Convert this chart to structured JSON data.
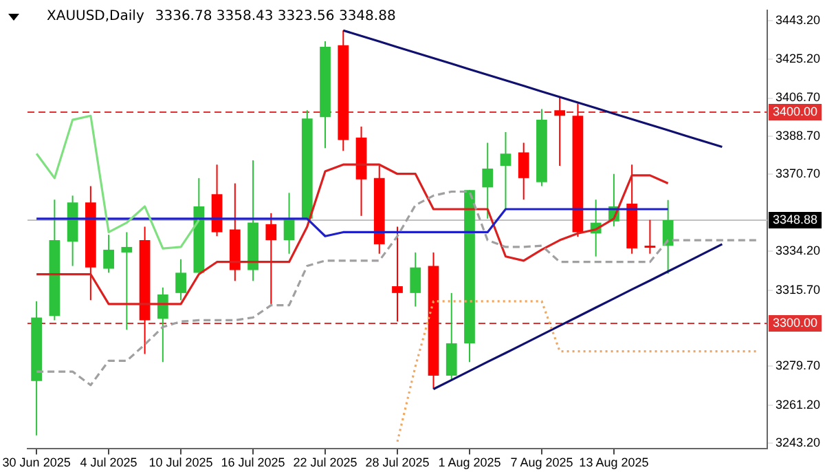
{
  "chart_data": {
    "type": "candlestick",
    "title": "XAUUSD,Daily",
    "subtitle": "3336.78 3358.43 3323.56 3348.88",
    "categories": [
      "30 Jun 2025",
      null,
      null,
      null,
      "4 Jul 2025",
      null,
      null,
      null,
      "10 Jul 2025",
      null,
      null,
      null,
      "16 Jul 2025",
      null,
      null,
      null,
      "22 Jul 2025",
      null,
      null,
      null,
      "28 Jul 2025",
      null,
      null,
      null,
      "1 Aug 2025",
      null,
      null,
      null,
      "7 Aug 2025",
      null,
      null,
      null,
      "13 Aug 2025",
      null,
      null,
      null,
      null,
      null,
      null,
      null,
      null
    ],
    "series": [
      {
        "type": "line",
        "color": "#7fe07f",
        "values": [
          3380.4,
          3368.8,
          3396.4,
          3398.3,
          3343.2,
          3347.7,
          3355.4,
          3335.5,
          3336.2,
          3348.9,
          null,
          null,
          null,
          null,
          null,
          null,
          null,
          null,
          null,
          null,
          null,
          null,
          null,
          null,
          null,
          null,
          null,
          null,
          null,
          null,
          null,
          null,
          null,
          null,
          null,
          null,
          null,
          null,
          null,
          null,
          null
        ]
      },
      {
        "type": "line",
        "color": "#a0a0a0",
        "line_style": "dashed",
        "values": [
          3277.2,
          3277.2,
          3277.2,
          3270.8,
          3282.3,
          3282.3,
          3290,
          3298.3,
          3300.9,
          3301.5,
          3301.5,
          3301.5,
          3302.8,
          3308.6,
          3308.6,
          3327.2,
          3329.7,
          3329.7,
          3329.7,
          3329.7,
          3341.3,
          3356,
          3360.5,
          3362.4,
          3362.4,
          3339.4,
          3336.2,
          3336.2,
          3336.8,
          3329.1,
          3329.1,
          3329.1,
          3329.1,
          3329.1,
          3329.1,
          3339.4,
          3339.4,
          3339.4,
          3339.4,
          3339.4,
          3339.4
        ]
      },
      {
        "type": "line",
        "color": "#f0a860",
        "line_style": "dotted",
        "values": [
          null,
          null,
          null,
          null,
          null,
          null,
          null,
          null,
          null,
          null,
          null,
          null,
          null,
          null,
          null,
          null,
          null,
          null,
          null,
          null,
          3244,
          3279.7,
          3310.5,
          3310.5,
          3310.5,
          3310.5,
          3310.5,
          3310.5,
          3310.5,
          3286.8,
          3286.8,
          3286.8,
          3286.8,
          3286.8,
          3286.8,
          3286.8,
          3286.8,
          3286.8,
          3286.8,
          3286.8,
          3286.8
        ]
      },
      {
        "type": "line",
        "color": "#2020c8",
        "values": [
          3349.6,
          3349.6,
          3349.6,
          3349.6,
          3349.6,
          3349.6,
          3349.6,
          3349.6,
          3349.6,
          3349.6,
          3349.6,
          3349.6,
          3349.6,
          3349.6,
          3349.6,
          3349.6,
          3341.3,
          3343.2,
          3343.2,
          3343.2,
          3343.2,
          3343.2,
          3343.2,
          3343.2,
          3343.2,
          3343.2,
          3354.1,
          3354.1,
          3354.1,
          3354.1,
          3354.1,
          3354.1,
          3354.1,
          3354.1,
          3354.1,
          3354.1,
          null,
          null,
          null,
          null,
          null
        ]
      },
      {
        "type": "line",
        "color": "#dc2020",
        "values": [
          3323.3,
          3323.3,
          3323.3,
          3323.3,
          3309.2,
          3309.2,
          3309.2,
          3309.2,
          3309.2,
          3323.3,
          3329.1,
          3329.1,
          3329.1,
          3329.1,
          3329.1,
          3345.8,
          3372,
          3375.2,
          3375.2,
          3375.2,
          3370.8,
          3370.8,
          3354.1,
          3354.1,
          3354.1,
          3354.1,
          3331.7,
          3329.7,
          3334.9,
          3339.4,
          3342.6,
          3344.5,
          3349.6,
          3370.1,
          3370.1,
          3366.3,
          null,
          null,
          null,
          null,
          null
        ]
      },
      {
        "type": "line",
        "color": "#101070",
        "values": [
          null,
          null,
          null,
          null,
          null,
          null,
          null,
          null,
          null,
          null,
          null,
          null,
          null,
          null,
          null,
          null,
          null,
          3438.7,
          3436.1,
          3433.5,
          3430.8,
          3428.2,
          3425.6,
          3423.0,
          3420.3,
          3417.7,
          3415.1,
          3412.5,
          3409.8,
          3407.2,
          3404.6,
          3402.0,
          3399.3,
          3396.7,
          3394.1,
          3391.5,
          3388.8,
          3386.2,
          3383.6,
          null,
          null
        ]
      },
      {
        "type": "line",
        "color": "#101070",
        "values": [
          null,
          null,
          null,
          null,
          null,
          null,
          null,
          null,
          null,
          null,
          null,
          null,
          null,
          null,
          null,
          null,
          null,
          null,
          null,
          null,
          null,
          null,
          3268.9,
          3273.2,
          3277.5,
          3281.8,
          3286.0,
          3290.3,
          3294.6,
          3298.9,
          3303.2,
          3307.5,
          3311.8,
          3316.1,
          3320.3,
          3324.6,
          3328.9,
          3333.2,
          3337.5,
          null,
          null
        ]
      },
      {
        "colors": [
          "#2dc23c",
          "#2dc23c",
          "#2dc23c",
          "#ff0000",
          "#2dc23c",
          "#2dc23c",
          "#ff0000",
          "#2dc23c",
          "#2dc23c",
          "#2dc23c",
          "#ff0000",
          "#ff0000",
          "#2dc23c",
          "#ff0000",
          "#2dc23c",
          "#2dc23c",
          "#2dc23c",
          "#ff0000",
          "#ff0000",
          "#ff0000",
          "#ff0000",
          "#2dc23c",
          "#ff0000",
          "#2dc23c",
          "#2dc23c",
          "#2dc23c",
          "#2dc23c",
          "#ff0000",
          "#2dc23c",
          "#ff0000",
          "#ff0000",
          "#2dc23c",
          "#2dc23c",
          "#ff0000",
          "#ff0000",
          "#2dc23c",
          null,
          null,
          null,
          null,
          null
        ],
        "ohlc": [
          [
            3272.7,
            3310.5,
            3247,
            3302.8
          ],
          [
            3303.5,
            3358.6,
            3301.5,
            3339.4
          ],
          [
            3338.7,
            3360.5,
            3327.2,
            3357.3
          ],
          [
            3357.3,
            3365,
            3311,
            3326.5
          ],
          [
            3325.9,
            3342,
            3324,
            3334.9
          ],
          [
            3333.6,
            3343.2,
            3297,
            3336.2
          ],
          [
            3339.4,
            3345.8,
            3285.5,
            3301.5
          ],
          [
            3302.2,
            3317,
            3281.7,
            3313.7
          ],
          [
            3314.4,
            3330.4,
            3311,
            3324
          ],
          [
            3324,
            3368.8,
            3324,
            3355.4
          ],
          [
            3361.2,
            3375.2,
            3341.3,
            3343.2
          ],
          [
            3344.5,
            3366.3,
            3320.1,
            3325.3
          ],
          [
            3325.3,
            3377.2,
            3320.1,
            3347.7
          ],
          [
            3347,
            3352.2,
            3309.2,
            3339.4
          ],
          [
            3339.4,
            3361.8,
            3333,
            3349.6
          ],
          [
            3349.6,
            3400.9,
            3349.6,
            3397
          ],
          [
            3397.7,
            3433.6,
            3383,
            3431
          ],
          [
            3431.7,
            3438.7,
            3381.7,
            3386.8
          ],
          [
            3388,
            3393.2,
            3350.9,
            3368.2
          ],
          [
            3368.8,
            3374.6,
            3333,
            3337.5
          ],
          [
            3317.6,
            3345.8,
            3300.9,
            3314.4
          ],
          [
            3314.4,
            3333.6,
            3308,
            3326.5
          ],
          [
            3327.2,
            3333.6,
            3268.9,
            3275.3
          ],
          [
            3275.3,
            3314.4,
            3273.3,
            3290.6
          ],
          [
            3290.6,
            3363.1,
            3281.7,
            3363.1
          ],
          [
            3364.4,
            3385.5,
            3349.6,
            3373.3
          ],
          [
            3374.6,
            3390.6,
            3354.1,
            3380.4
          ],
          [
            3381,
            3385.5,
            3358.6,
            3368.8
          ],
          [
            3366.9,
            3401.5,
            3365,
            3396.4
          ],
          [
            3400.9,
            3407.3,
            3374.6,
            3398.3
          ],
          [
            3398.3,
            3404.1,
            3341,
            3343.2
          ],
          [
            3342.6,
            3358.6,
            3331.7,
            3347.7
          ],
          [
            3348.3,
            3370.8,
            3346,
            3355.4
          ],
          [
            3356.7,
            3375.2,
            3333,
            3335.5
          ],
          [
            3336.8,
            3349,
            3333,
            3336.2
          ],
          [
            3336.78,
            3358.43,
            3323.56,
            3348.88
          ],
          null,
          null,
          null,
          null,
          null
        ]
      }
    ],
    "ylim": [
      3240.6,
      3448.3
    ],
    "yticks": [
      {
        "value": 3443.2,
        "label": "3443.20"
      },
      {
        "value": 3425.2,
        "label": "3425.20"
      },
      {
        "value": 3406.7,
        "label": "3406.70"
      },
      {
        "value": 3388.7,
        "label": "3388.70"
      },
      {
        "value": 3370.7,
        "label": "3370.70"
      },
      {
        "value": 3334.2,
        "label": "3334.20"
      },
      {
        "value": 3315.7,
        "label": "3315.70"
      },
      {
        "value": 3279.7,
        "label": "3279.70"
      },
      {
        "value": 3261.2,
        "label": "3261.20"
      },
      {
        "value": 3243.2,
        "label": "3243.20"
      }
    ],
    "ref_lines": [
      {
        "axis": "y",
        "value": 3400,
        "label": "3400.00",
        "color": "#e03030",
        "line_style": "dashed"
      },
      {
        "axis": "y",
        "value": 3300,
        "label": "3300.00",
        "color": "#e03030",
        "line_style": "dashed"
      },
      {
        "axis": "y",
        "value": 3348.88,
        "label": "3348.88",
        "color": "#c0c0c0",
        "line_style": "solid"
      }
    ],
    "grid": false,
    "legend": false,
    "marker": "none"
  }
}
